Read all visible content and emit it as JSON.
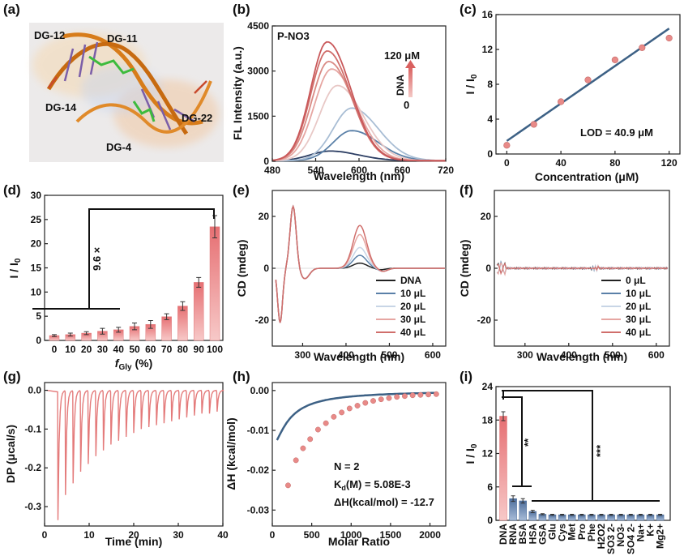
{
  "colors": {
    "gradient": [
      "#2c3e63",
      "#5a80a8",
      "#a8bdd4",
      "#e8c8c6",
      "#e6a6a2",
      "#d98a84",
      "#d06e6b",
      "#c9585a"
    ],
    "bar": "#e8888a",
    "bar_blue": "#6a8ab8",
    "fit_line": "#3d6185",
    "scatter": "#e88a88"
  },
  "chart_data": [
    {
      "panel": "(a)",
      "type": "image",
      "labels": [
        "DG-12",
        "DG-11",
        "DG-14",
        "DG-22",
        "DG-4"
      ]
    },
    {
      "panel": "(b)",
      "type": "line",
      "title": "P-NO3",
      "xlabel": "Wavelength (nm)",
      "ylabel": "FL Intensity (a.u.)",
      "xlim": [
        480,
        720
      ],
      "ylim": [
        0,
        4500
      ],
      "xticks": [
        480,
        540,
        600,
        660,
        720
      ],
      "yticks": [
        0,
        1500,
        3000,
        4500
      ],
      "ytick_labels": [
        "0",
        "1500",
        "3000",
        "4500"
      ],
      "annotation_top": "120 μM",
      "annotation_mid": "DNA",
      "annotation_bottom": "0",
      "series": [
        {
          "peak_x": 560,
          "peak_y": 320,
          "width": 55
        },
        {
          "peak_x": 590,
          "peak_y": 1000,
          "width": 52
        },
        {
          "peak_x": 590,
          "peak_y": 1750,
          "width": 52
        },
        {
          "peak_x": 570,
          "peak_y": 2500,
          "width": 50
        },
        {
          "peak_x": 562,
          "peak_y": 3050,
          "width": 48
        },
        {
          "peak_x": 558,
          "peak_y": 3300,
          "width": 47
        },
        {
          "peak_x": 556,
          "peak_y": 3650,
          "width": 46
        },
        {
          "peak_x": 556,
          "peak_y": 3950,
          "width": 46
        }
      ]
    },
    {
      "panel": "(c)",
      "type": "scatter",
      "xlabel": "Concentration (μM)",
      "ylabel": "I / I0",
      "xlim": [
        -8,
        128
      ],
      "ylim": [
        0,
        16
      ],
      "xticks": [
        0,
        40,
        80,
        120
      ],
      "yticks": [
        0,
        4,
        8,
        12,
        16
      ],
      "x": [
        0,
        20,
        40,
        60,
        80,
        100,
        120
      ],
      "y": [
        1.0,
        3.4,
        6.0,
        8.5,
        10.8,
        12.2,
        13.3
      ],
      "fit": {
        "x": [
          0,
          120
        ],
        "y": [
          1.5,
          14.4
        ]
      },
      "annotation": "LOD = 40.9 μM"
    },
    {
      "panel": "(d)",
      "type": "bar",
      "xlabel": "fGly (%)",
      "ylabel": "I / I0",
      "ylim": [
        0,
        30
      ],
      "yticks": [
        0,
        5,
        10,
        15,
        20,
        25,
        30
      ],
      "categories": [
        "0",
        "10",
        "20",
        "30",
        "40",
        "50",
        "60",
        "70",
        "80",
        "90",
        "100"
      ],
      "values": [
        1.0,
        1.2,
        1.5,
        1.9,
        2.2,
        2.9,
        3.3,
        4.9,
        7.1,
        12.0,
        23.5
      ],
      "errors": [
        0.2,
        0.3,
        0.3,
        0.6,
        0.5,
        0.7,
        0.8,
        0.6,
        0.9,
        1.0,
        2.3
      ],
      "annotation": "9.6 ×"
    },
    {
      "panel": "(e)",
      "type": "line",
      "xlabel": "Wavelength (nm)",
      "ylabel": "CD (mdeg)",
      "xlim": [
        230,
        630
      ],
      "ylim": [
        -30,
        30
      ],
      "xticks": [
        300,
        400,
        500,
        600
      ],
      "yticks": [
        -20,
        0,
        20
      ],
      "legend": [
        "DNA",
        "10 μL",
        "20 μL",
        "30 μL",
        "40 μL"
      ],
      "peak_430": [
        2,
        5,
        8,
        13,
        16.5
      ]
    },
    {
      "panel": "(f)",
      "type": "line",
      "xlabel": "Wavelength (nm)",
      "ylabel": "CD (mdeg)",
      "xlim": [
        230,
        630
      ],
      "ylim": [
        -30,
        30
      ],
      "xticks": [
        300,
        400,
        500,
        600
      ],
      "yticks": [
        -20,
        0,
        20
      ],
      "legend": [
        "0 μL",
        "10 μL",
        "20 μL",
        "30 μL",
        "40 μL"
      ]
    },
    {
      "panel": "(g)",
      "type": "line",
      "xlabel": "Time (min)",
      "ylabel": "DP (μcal/s)",
      "xlim": [
        0,
        40
      ],
      "ylim": [
        -0.35,
        0.02
      ],
      "xticks": [
        0,
        10,
        20,
        30,
        40
      ],
      "yticks": [
        -0.3,
        -0.2,
        -0.1,
        0.0
      ],
      "ytick_labels": [
        "-0.3",
        "-0.2",
        "-0.1",
        "0.0"
      ],
      "injection_times": [
        3,
        4.7,
        6.4,
        8.1,
        9.8,
        11.5,
        13.2,
        14.9,
        16.6,
        18.3,
        20,
        21.7,
        23.4,
        25.1,
        26.8,
        28.5,
        30.2,
        31.9,
        33.6,
        35.3,
        37,
        38.7
      ],
      "injection_depths": [
        -0.335,
        -0.27,
        -0.24,
        -0.21,
        -0.19,
        -0.17,
        -0.155,
        -0.14,
        -0.13,
        -0.12,
        -0.11,
        -0.1,
        -0.095,
        -0.09,
        -0.085,
        -0.08,
        -0.075,
        -0.07,
        -0.065,
        -0.06,
        -0.06,
        -0.055
      ]
    },
    {
      "panel": "(h)",
      "type": "scatter",
      "xlabel": "Molar Ratio",
      "ylabel": "ΔH (kcal/mol)",
      "xlim": [
        0,
        2200
      ],
      "ylim": [
        -0.034,
        0.002
      ],
      "xticks": [
        0,
        500,
        1000,
        1500,
        2000
      ],
      "yticks": [
        -0.03,
        -0.02,
        -0.01,
        0.0
      ],
      "ytick_labels": [
        "-0.03",
        "-0.02",
        "-0.01",
        "0.00"
      ],
      "x": [
        200,
        300,
        390,
        480,
        580,
        680,
        780,
        880,
        980,
        1080,
        1180,
        1280,
        1380,
        1480,
        1580,
        1680,
        1780,
        1880,
        1980,
        2080
      ],
      "y": [
        -0.0238,
        -0.0175,
        -0.0145,
        -0.0122,
        -0.0098,
        -0.0082,
        -0.0066,
        -0.0055,
        -0.0045,
        -0.0038,
        -0.0031,
        -0.0026,
        -0.0022,
        -0.0019,
        -0.0016,
        -0.0014,
        -0.0012,
        -0.0011,
        -0.001,
        -0.0009
      ],
      "annotations": [
        "N = 2",
        "Kd(M) = 5.08E-3",
        "ΔH(kcal/mol) = -12.7"
      ]
    },
    {
      "panel": "(i)",
      "type": "bar",
      "ylabel": "I / I0",
      "ylim": [
        0,
        24
      ],
      "yticks": [
        0,
        6,
        12,
        18,
        24
      ],
      "categories": [
        "DNA",
        "RNA",
        "BSA",
        "HSA",
        "GSA",
        "Glu",
        "Cys",
        "Met",
        "Pro",
        "Phe",
        "H2O2",
        "SO3 2-",
        "NO3-",
        "SO4 2-",
        "Na+",
        "K+",
        "Mg2+"
      ],
      "values": [
        18.7,
        3.9,
        3.5,
        1.6,
        1.1,
        1.0,
        1.0,
        1.0,
        1.0,
        1.0,
        1.0,
        1.0,
        1.0,
        1.0,
        1.0,
        1.0,
        1.0
      ],
      "errors": [
        0.8,
        0.5,
        0.4,
        0.2,
        0.1,
        0.1,
        0.1,
        0.1,
        0.1,
        0.1,
        0.1,
        0.1,
        0.1,
        0.1,
        0.1,
        0.1,
        0.1
      ],
      "annotations": [
        "**",
        "***"
      ]
    }
  ]
}
